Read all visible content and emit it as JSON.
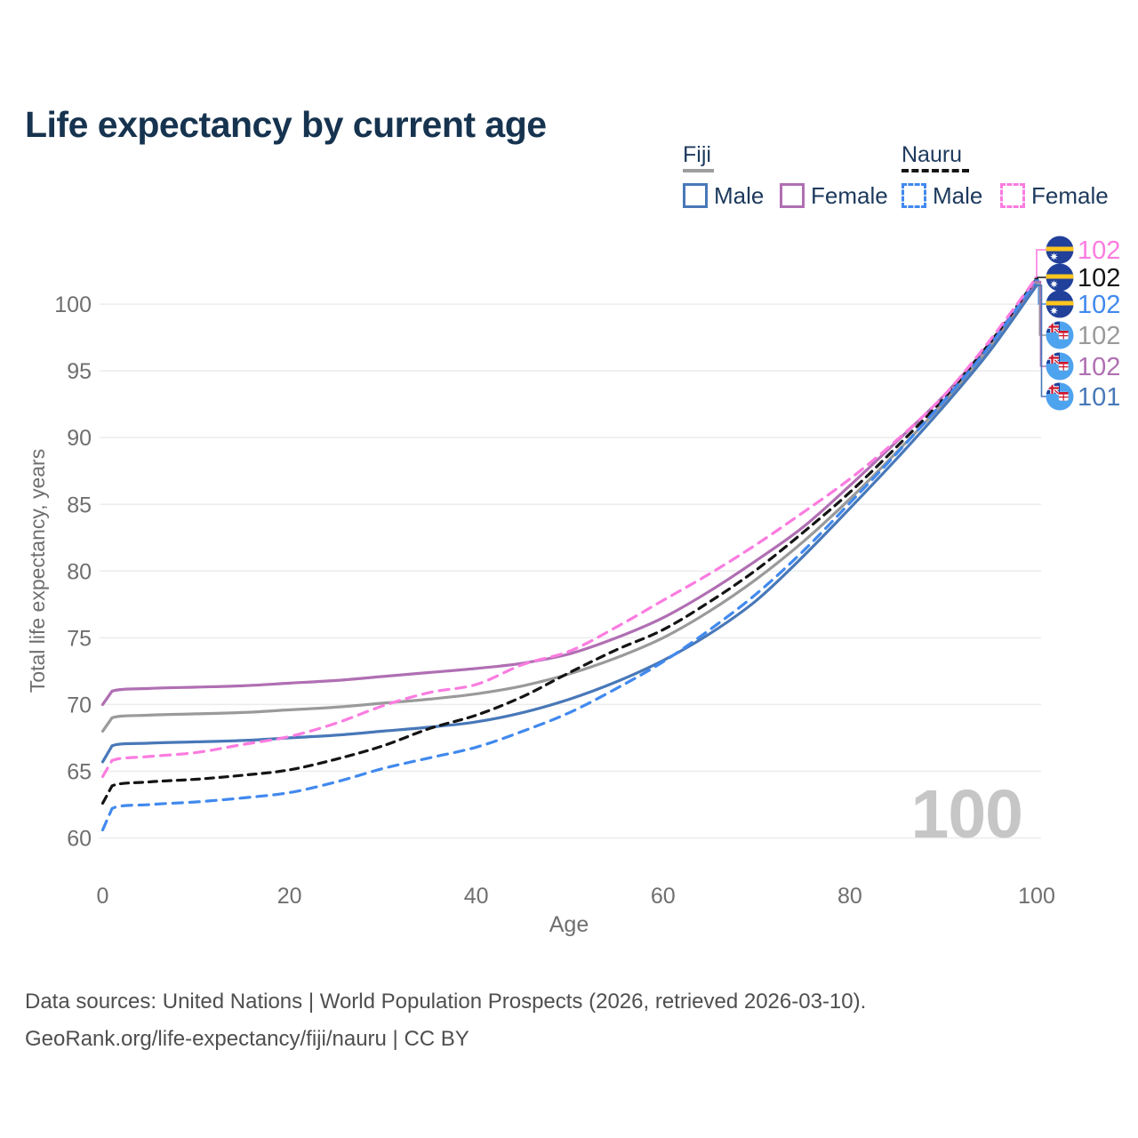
{
  "title": "Life expectancy by current age",
  "legend": {
    "groups": [
      {
        "label": "Fiji",
        "line_style": "solid",
        "underline_color": "#9e9e9e",
        "items": [
          {
            "label": "Male",
            "color": "#4878b8",
            "dashed": false
          },
          {
            "label": "Female",
            "color": "#b06fb3",
            "dashed": false
          }
        ]
      },
      {
        "label": "Nauru",
        "line_style": "dashed",
        "underline_color": "#141414",
        "items": [
          {
            "label": "Male",
            "color": "#4189ee",
            "dashed": true
          },
          {
            "label": "Female",
            "color": "#fb7ce0",
            "dashed": true
          }
        ]
      }
    ]
  },
  "chart_data": {
    "type": "line",
    "title": "Life expectancy by current age",
    "xlabel": "Age",
    "ylabel": "Total life expectancy, years",
    "x_ticks": [
      0,
      20,
      40,
      60,
      80,
      100
    ],
    "y_ticks": [
      60,
      65,
      70,
      75,
      80,
      85,
      90,
      95,
      100
    ],
    "xlim": [
      0,
      100
    ],
    "ylim": [
      58,
      104
    ],
    "grid": true,
    "legend_position": "top-right",
    "age_cursor_watermark": "100",
    "x": [
      0,
      1,
      5,
      10,
      15,
      20,
      25,
      30,
      35,
      40,
      45,
      50,
      55,
      60,
      65,
      70,
      75,
      80,
      85,
      90,
      95,
      100
    ],
    "series": [
      {
        "name": "Nauru Female",
        "country": "Nauru",
        "sex": "Female",
        "color": "#fb7ce0",
        "dashed": true,
        "flag": "nauru",
        "end_label": "102",
        "values": [
          64.6,
          65.8,
          66.1,
          66.4,
          67.0,
          67.6,
          68.6,
          69.9,
          70.9,
          71.5,
          73.0,
          74.0,
          75.8,
          77.8,
          79.8,
          82.0,
          84.4,
          86.9,
          89.8,
          93.1,
          97.3,
          102.0
        ]
      },
      {
        "name": "Nauru Total",
        "country": "Nauru",
        "sex": "Both",
        "color": "#141414",
        "dashed": true,
        "flag": "nauru",
        "end_label": "102",
        "values": [
          62.6,
          63.9,
          64.2,
          64.4,
          64.7,
          65.1,
          65.9,
          66.9,
          68.2,
          69.2,
          70.6,
          72.4,
          74.1,
          75.6,
          77.7,
          80.1,
          82.9,
          85.9,
          89.3,
          92.9,
          97.1,
          101.9
        ]
      },
      {
        "name": "Nauru Male",
        "country": "Nauru",
        "sex": "Male",
        "color": "#4189ee",
        "dashed": true,
        "flag": "nauru",
        "end_label": "102",
        "values": [
          60.6,
          62.2,
          62.5,
          62.7,
          63.0,
          63.4,
          64.2,
          65.2,
          66.0,
          66.8,
          68.0,
          69.4,
          71.2,
          73.2,
          75.6,
          78.3,
          81.5,
          85.1,
          88.8,
          92.7,
          96.9,
          101.8
        ]
      },
      {
        "name": "Fiji Total",
        "country": "Fiji",
        "sex": "Both",
        "color": "#9a9a9a",
        "dashed": false,
        "flag": "fiji",
        "end_label": "102",
        "values": [
          68.0,
          69.0,
          69.2,
          69.3,
          69.4,
          69.6,
          69.8,
          70.1,
          70.4,
          70.8,
          71.4,
          72.3,
          73.5,
          75.0,
          77.0,
          79.4,
          82.2,
          85.4,
          88.9,
          92.6,
          96.8,
          101.6
        ]
      },
      {
        "name": "Fiji Female",
        "country": "Fiji",
        "sex": "Female",
        "color": "#b06fb3",
        "dashed": false,
        "flag": "fiji",
        "end_label": "102",
        "values": [
          70.0,
          71.0,
          71.2,
          71.3,
          71.4,
          71.6,
          71.8,
          72.1,
          72.4,
          72.7,
          73.1,
          73.8,
          75.0,
          76.5,
          78.5,
          80.8,
          83.3,
          86.4,
          89.7,
          93.1,
          97.1,
          101.7
        ]
      },
      {
        "name": "Fiji Male",
        "country": "Fiji",
        "sex": "Male",
        "color": "#4878b8",
        "dashed": false,
        "flag": "fiji",
        "end_label": "101",
        "values": [
          65.7,
          66.9,
          67.1,
          67.2,
          67.3,
          67.5,
          67.7,
          68.0,
          68.3,
          68.7,
          69.4,
          70.4,
          71.7,
          73.3,
          75.3,
          77.8,
          81.1,
          84.7,
          88.4,
          92.3,
          96.5,
          101.4
        ]
      }
    ]
  },
  "colors": {
    "title_text": "#16334f",
    "axis_text": "#6f6f6f",
    "gridline": "#ececec",
    "watermark": "#c6c6c6",
    "footer_text": "#4f4f4f",
    "nauru_flag_blue": "#20409a",
    "nauru_flag_yellow": "#ffc61e",
    "fiji_flag_blue": "#4ea3ef",
    "flag_red": "#cf142b"
  },
  "footer": {
    "line1": "Data sources: United Nations | World Population Prospects (2026, retrieved 2026-03-10).",
    "line2": "GeoRank.org/life-expectancy/fiji/nauru | CC BY"
  }
}
